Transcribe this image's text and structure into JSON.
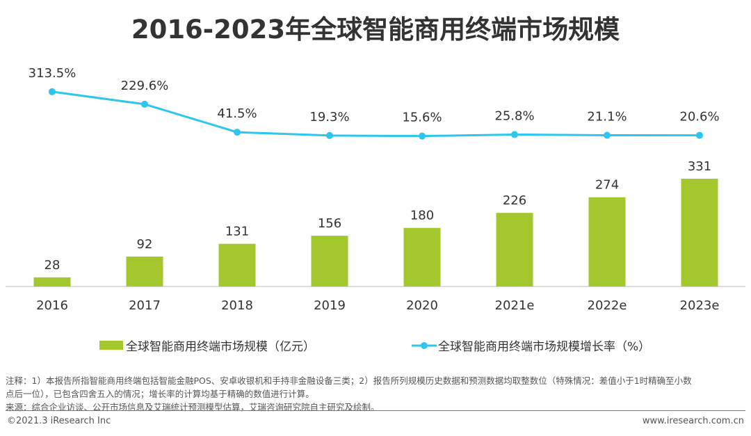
{
  "chart_data": {
    "type": "bar+line",
    "title": "2016-2023年全球智能商用终端市场规模",
    "categories": [
      "2016",
      "2017",
      "2018",
      "2019",
      "2020",
      "2021e",
      "2022e",
      "2023e"
    ],
    "series": [
      {
        "name": "全球智能商用终端市场规模（亿元）",
        "type": "bar",
        "color": "#a3c72c",
        "values": [
          28,
          92,
          131,
          156,
          180,
          226,
          274,
          331
        ]
      },
      {
        "name": "全球智能商用终端市场规模增长率（%）",
        "type": "line",
        "color": "#2ec5ef",
        "values": [
          313.5,
          229.6,
          41.5,
          19.3,
          15.6,
          25.8,
          21.1,
          20.6
        ],
        "labels": [
          "313.5%",
          "229.6%",
          "41.5%",
          "19.3%",
          "15.6%",
          "25.8%",
          "21.1%",
          "20.6%"
        ]
      }
    ],
    "legend_position": "bottom",
    "grid": false
  },
  "notes": {
    "line1": "注释：1）本报告所指智能商用终端包括智能金融POS、安卓收银机和手持非金融设备三类；2）报告所列规模历史数据和预测数据均取整数位（特殊情况：差值小于1时精确至小数",
    "line2": "点后一位），已包含四舍五入的情况；增长率的计算均基于精确的数值进行计算。",
    "source": "来源：综合企业访谈、公开市场信息及艾瑞统计预测模型估算，艾瑞咨询研究院自主研究及绘制。"
  },
  "footer": {
    "copyright": "©2021.3 iResearch Inc",
    "website": "www.iresearch.com.cn"
  }
}
